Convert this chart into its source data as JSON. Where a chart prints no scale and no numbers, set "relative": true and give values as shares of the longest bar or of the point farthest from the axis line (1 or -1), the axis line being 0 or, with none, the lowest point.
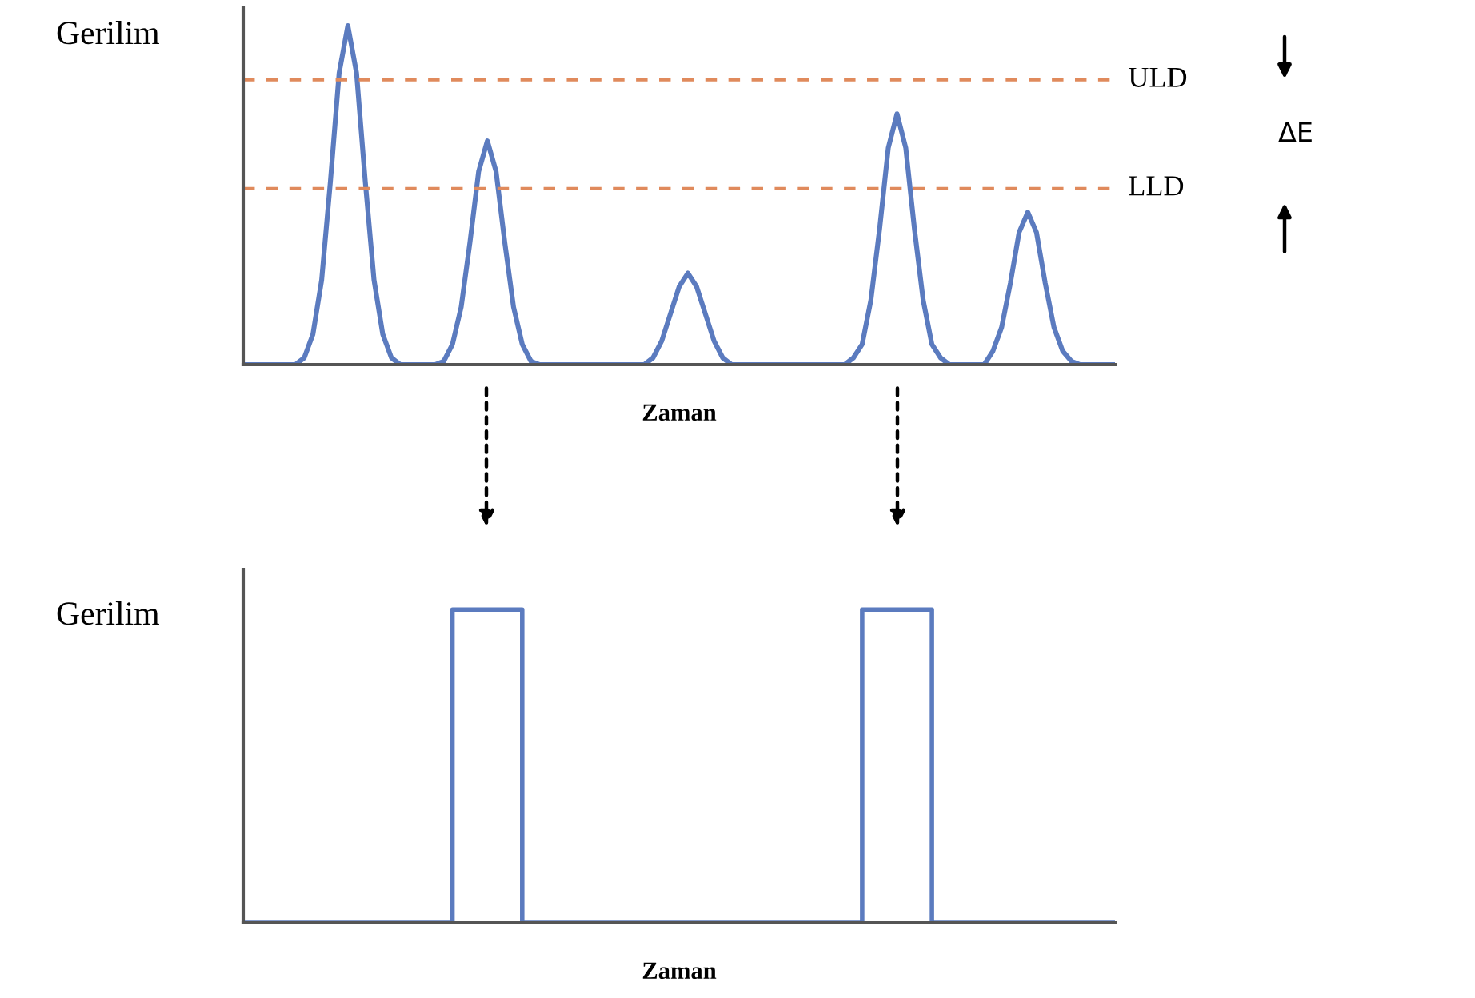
{
  "chart_data": [
    {
      "type": "line",
      "relative": true,
      "ylabel": "Gerilim",
      "xlabel": "Zaman",
      "marker": "none",
      "line_style": "solid",
      "categories": [
        null,
        null,
        null,
        null,
        null,
        null,
        null,
        null,
        null,
        null,
        null,
        null,
        null,
        null,
        null,
        null,
        null,
        null,
        null,
        null,
        null,
        null,
        null,
        null,
        null,
        null,
        null,
        null,
        null,
        null,
        null,
        null,
        null,
        null,
        null,
        null,
        null,
        null,
        null,
        null,
        null,
        null,
        null,
        null,
        null,
        null,
        null,
        null,
        null,
        null,
        null,
        null,
        null,
        null,
        null,
        null,
        null,
        null,
        null,
        null,
        null,
        null,
        null,
        null,
        null,
        null,
        null,
        null,
        null,
        null,
        null,
        null,
        null,
        null,
        null,
        null,
        null,
        null,
        null,
        null,
        null,
        null,
        null,
        null,
        null,
        null,
        null,
        null,
        null,
        null,
        null,
        null,
        null,
        null,
        null,
        null,
        null,
        null,
        null,
        null,
        null
      ],
      "series": [
        {
          "color": "#5b7bbf",
          "values": [
            0,
            0,
            0,
            0,
            0,
            0,
            0,
            0.02,
            0.09,
            0.25,
            0.54,
            0.86,
            1,
            0.86,
            0.54,
            0.25,
            0.09,
            0.02,
            0,
            0,
            0,
            0,
            0,
            0.01,
            0.06,
            0.17,
            0.36,
            0.57,
            0.66,
            0.57,
            0.36,
            0.17,
            0.06,
            0.01,
            0,
            0,
            0,
            0,
            0,
            0,
            0,
            0,
            0,
            0,
            0,
            0,
            0,
            0.02,
            0.07,
            0.15,
            0.23,
            0.27,
            0.23,
            0.15,
            0.07,
            0.02,
            0,
            0,
            0,
            0,
            0,
            0,
            0,
            0,
            0,
            0,
            0,
            0,
            0,
            0,
            0.02,
            0.06,
            0.19,
            0.4,
            0.64,
            0.74,
            0.64,
            0.4,
            0.19,
            0.06,
            0.02,
            0,
            0,
            0,
            0,
            0,
            0.04,
            0.11,
            0.24,
            0.39,
            0.45,
            0.39,
            0.24,
            0.11,
            0.04,
            0.01,
            0,
            0,
            0,
            0,
            0
          ]
        }
      ],
      "ref_lines": [
        {
          "axis": "y",
          "value": 0.84,
          "label": "ULD",
          "color": "#e08a5c",
          "line_style": "dashed"
        },
        {
          "axis": "y",
          "value": 0.52,
          "label": "LLD",
          "color": "#e08a5c",
          "line_style": "dashed"
        }
      ],
      "annotations": [
        "ΔE"
      ]
    },
    {
      "type": "step",
      "relative": true,
      "ylabel": "Gerilim",
      "xlabel": "Zaman",
      "marker": "none",
      "line_style": "solid",
      "categories": [
        null,
        null,
        null,
        null,
        null,
        null,
        null,
        null,
        null,
        null,
        null,
        null,
        null,
        null,
        null,
        null,
        null,
        null,
        null,
        null,
        null,
        null,
        null,
        null,
        null,
        null,
        null,
        null,
        null,
        null,
        null,
        null,
        null,
        null,
        null,
        null,
        null,
        null,
        null,
        null,
        null,
        null,
        null,
        null,
        null,
        null,
        null,
        null,
        null,
        null,
        null,
        null,
        null,
        null,
        null,
        null,
        null,
        null,
        null,
        null,
        null,
        null,
        null,
        null,
        null,
        null,
        null,
        null,
        null,
        null,
        null,
        null,
        null,
        null,
        null,
        null,
        null,
        null,
        null,
        null,
        null,
        null,
        null,
        null,
        null,
        null,
        null,
        null,
        null,
        null,
        null,
        null,
        null,
        null,
        null,
        null,
        null,
        null,
        null,
        null,
        null
      ],
      "series": [
        {
          "color": "#5b7bbf",
          "values": [
            0,
            0,
            0,
            0,
            0,
            0,
            0,
            0,
            0,
            0,
            0,
            0,
            0,
            0,
            0,
            0,
            0,
            0,
            0,
            0,
            0,
            0,
            0,
            0,
            1,
            1,
            1,
            1,
            1,
            1,
            1,
            1,
            0,
            0,
            0,
            0,
            0,
            0,
            0,
            0,
            0,
            0,
            0,
            0,
            0,
            0,
            0,
            0,
            0,
            0,
            0,
            0,
            0,
            0,
            0,
            0,
            0,
            0,
            0,
            0,
            0,
            0,
            0,
            0,
            0,
            0,
            0,
            0,
            0,
            0,
            0,
            1,
            1,
            1,
            1,
            1,
            1,
            1,
            1,
            0,
            0,
            0,
            0,
            0,
            0,
            0,
            0,
            0,
            0,
            0,
            0,
            0,
            0,
            0,
            0,
            0,
            0,
            0,
            0,
            0,
            0
          ]
        }
      ]
    }
  ]
}
